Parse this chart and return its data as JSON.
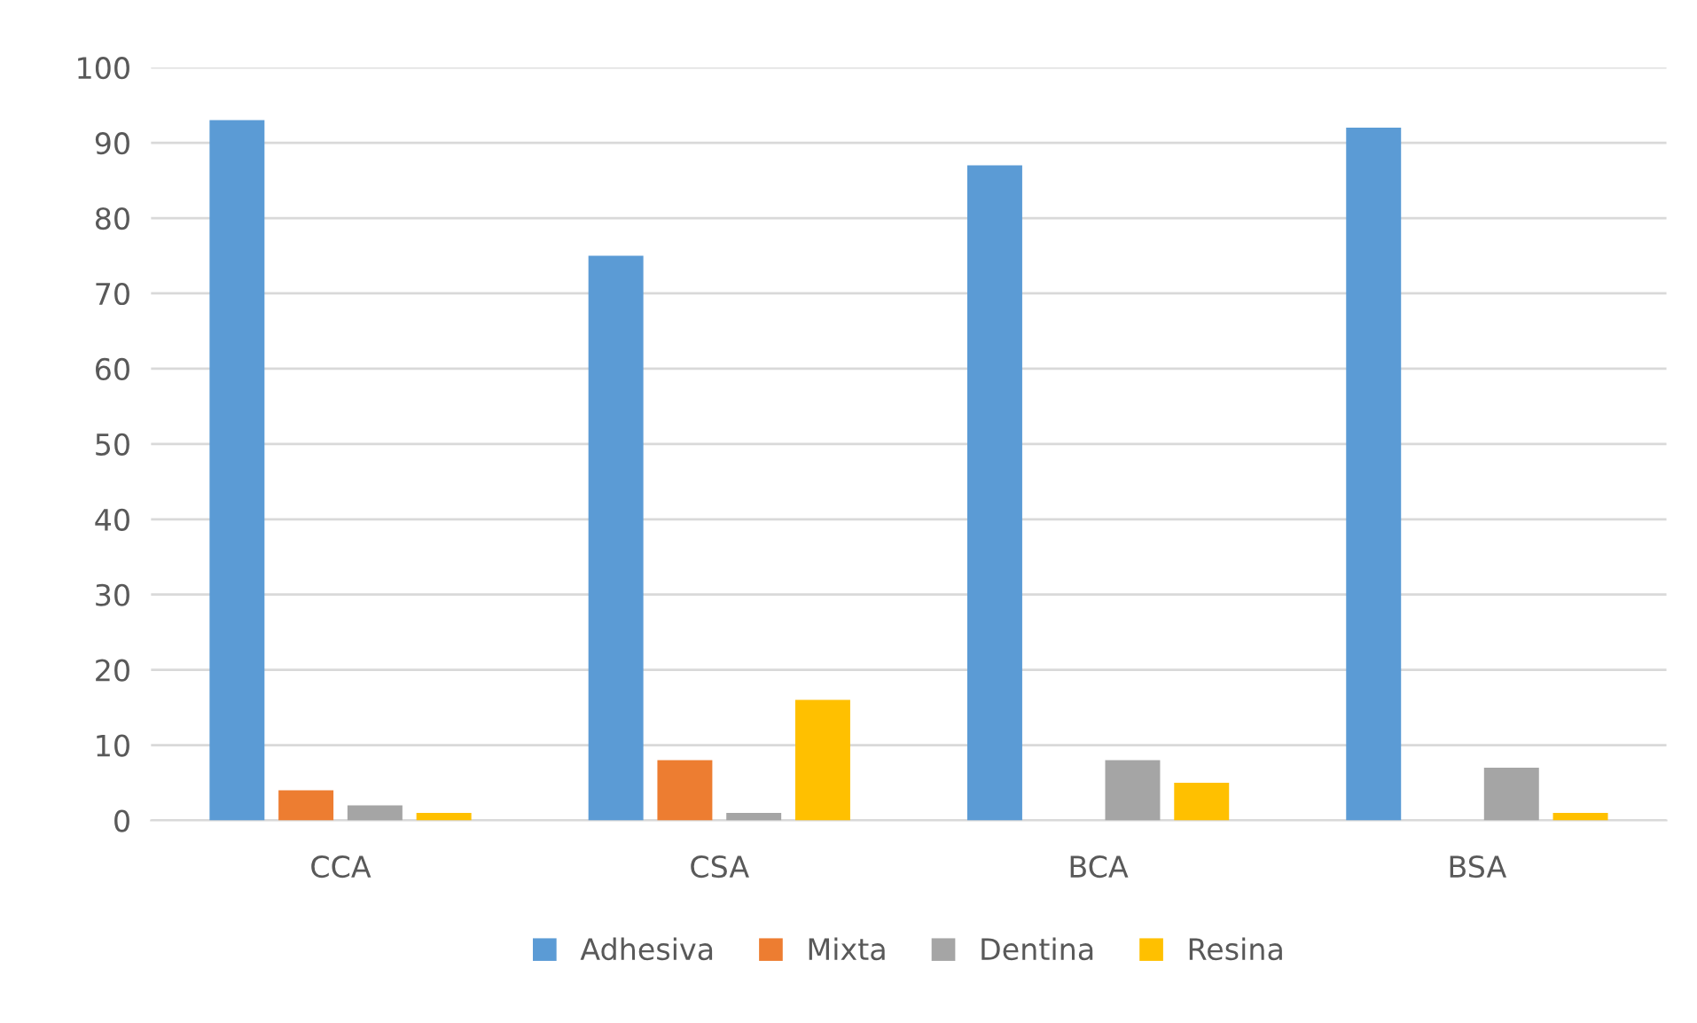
{
  "chart_data": {
    "type": "bar",
    "categories": [
      "CCA",
      "CSA",
      "BCA",
      "BSA"
    ],
    "series": [
      {
        "name": "Adhesiva",
        "color": "#5b9bd5",
        "values": [
          93,
          75,
          87,
          92
        ]
      },
      {
        "name": "Mixta",
        "color": "#ed7d31",
        "values": [
          4,
          8,
          0,
          0
        ]
      },
      {
        "name": "Dentina",
        "color": "#a5a5a5",
        "values": [
          2,
          1,
          8,
          7
        ]
      },
      {
        "name": "Resina",
        "color": "#ffc000",
        "values": [
          1,
          16,
          5,
          1
        ]
      }
    ],
    "ylim": [
      0,
      100
    ],
    "yticks": [
      0,
      10,
      20,
      30,
      40,
      50,
      60,
      70,
      80,
      90,
      100
    ],
    "grid": "y",
    "legend": "bottom"
  }
}
